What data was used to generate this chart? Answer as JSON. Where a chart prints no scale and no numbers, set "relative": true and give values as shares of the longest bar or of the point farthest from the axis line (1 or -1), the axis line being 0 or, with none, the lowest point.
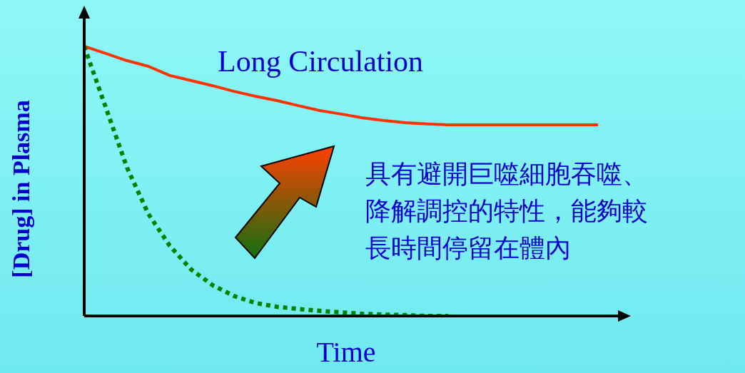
{
  "chart_data": {
    "type": "line",
    "relative": true,
    "xlabel": "Time",
    "ylabel": "[Drug] in Plasma",
    "legend": false,
    "categories": [
      null,
      null,
      null,
      null,
      null,
      null,
      null,
      null,
      null,
      null,
      null,
      null,
      null,
      null,
      null,
      null,
      null,
      null,
      null,
      null,
      null,
      null,
      null,
      null,
      null
    ],
    "series": [
      {
        "name": "Long Circulation",
        "color": "#ff3300",
        "line_style": "solid",
        "values": [
          1.0,
          0.974,
          0.947,
          0.926,
          0.892,
          0.873,
          0.854,
          0.833,
          0.815,
          0.799,
          0.78,
          0.762,
          0.749,
          0.735,
          0.725,
          0.717,
          0.712,
          0.709,
          0.709,
          0.709,
          0.709,
          0.709,
          0.709,
          0.709,
          0.709
        ]
      },
      {
        "color": "#008000",
        "line_style": "dotted",
        "values": [
          1.0,
          0.775,
          0.55,
          0.378,
          0.26,
          0.172,
          0.114,
          0.074,
          0.048,
          0.034,
          0.026,
          0.019,
          0.013,
          0.008,
          0.005,
          0.003,
          0.0,
          0.0,
          null,
          null,
          null,
          null,
          null,
          null,
          null
        ]
      }
    ],
    "annotations": [
      "具有避開巨噬細胞吞噬、降解調控的特性，能夠較長時間停留在體內"
    ]
  }
}
